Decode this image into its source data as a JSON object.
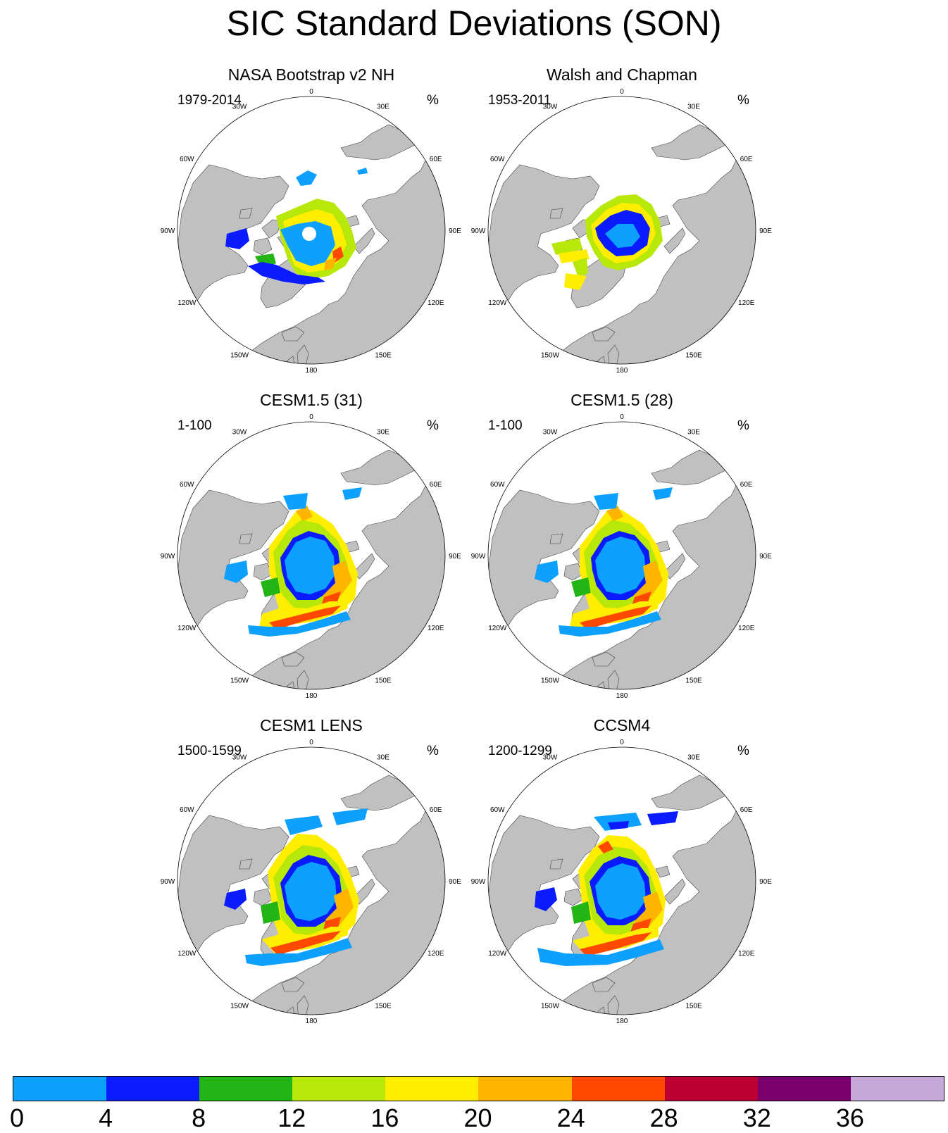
{
  "title": "SIC Standard Deviations (SON)",
  "unit_label": "%",
  "lon_labels": [
    "180",
    "150E",
    "120E",
    "90E",
    "60E",
    "30E",
    "0",
    "30W",
    "60W",
    "90W",
    "120W",
    "150W"
  ],
  "panels": [
    {
      "title": "NASA Bootstrap v2 NH",
      "years": "1979-2014"
    },
    {
      "title": "Walsh and Chapman",
      "years": "1953-2011"
    },
    {
      "title": "CESM1.5 (31)",
      "years": "1-100"
    },
    {
      "title": "CESM1.5 (28)",
      "years": "1-100"
    },
    {
      "title": "CESM1 LENS",
      "years": "1500-1599"
    },
    {
      "title": "CCSM4",
      "years": "1200-1299"
    }
  ],
  "colorbar": {
    "labels": [
      "0",
      "4",
      "8",
      "12",
      "16",
      "20",
      "24",
      "28",
      "32",
      "36"
    ],
    "colors": [
      "#0ea0ff",
      "#0a1cff",
      "#23b515",
      "#b7e80a",
      "#ffee00",
      "#ffb400",
      "#ff4800",
      "#bd0032",
      "#7a006d",
      "#c7a9d9"
    ]
  },
  "colors": {
    "land": "#c0c0c0",
    "ocean": "#ffffff",
    "coast": "#444444"
  }
}
